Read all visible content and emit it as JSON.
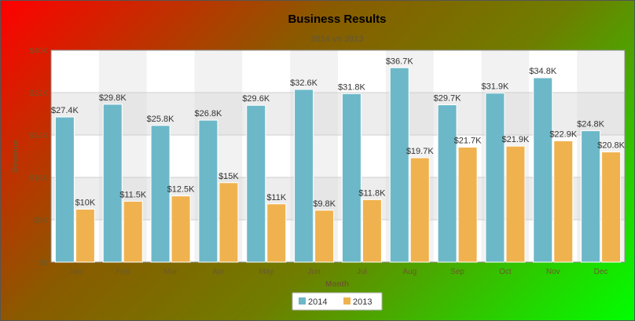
{
  "chart_data": {
    "type": "bar",
    "title": "Business Results",
    "subtitle": "2014 vs 2013",
    "xlabel": "Month",
    "ylabel": "Revenue",
    "ylim": [
      0,
      40000
    ],
    "yticks": [
      0,
      8000,
      16000,
      24000,
      32000,
      40000
    ],
    "ytick_labels": [
      "$0",
      "$8K",
      "$16K",
      "$24K",
      "$32K",
      "$40K"
    ],
    "categories": [
      "Jan",
      "Feb",
      "Mar",
      "Apr",
      "May",
      "Jun",
      "Jul",
      "Aug",
      "Sep",
      "Oct",
      "Nov",
      "Dec"
    ],
    "series": [
      {
        "name": "2014",
        "color": "#6cb8c8",
        "values": [
          27400,
          29800,
          25800,
          26800,
          29600,
          32600,
          31800,
          36700,
          29700,
          31900,
          34800,
          24800
        ],
        "labels": [
          "$27.4K",
          "$29.8K",
          "$25.8K",
          "$26.8K",
          "$29.6K",
          "$32.6K",
          "$31.8K",
          "$36.7K",
          "$29.7K",
          "$31.9K",
          "$34.8K",
          "$24.8K"
        ]
      },
      {
        "name": "2013",
        "color": "#f0b24f",
        "values": [
          10000,
          11500,
          12500,
          15000,
          11000,
          9800,
          11800,
          19700,
          21700,
          21900,
          22900,
          20800
        ],
        "labels": [
          "$10K",
          "$11.5K",
          "$12.5K",
          "$15K",
          "$11K",
          "$9.8K",
          "$11.8K",
          "$19.7K",
          "$21.7K",
          "$21.9K",
          "$22.9K",
          "$20.8K"
        ]
      }
    ],
    "grid": true,
    "legend_position": "bottom-center",
    "background_gradient": [
      "#ff0000",
      "#00ff00"
    ],
    "plot_stripe_colors": [
      "#ffffff",
      "#eaeaea"
    ]
  }
}
